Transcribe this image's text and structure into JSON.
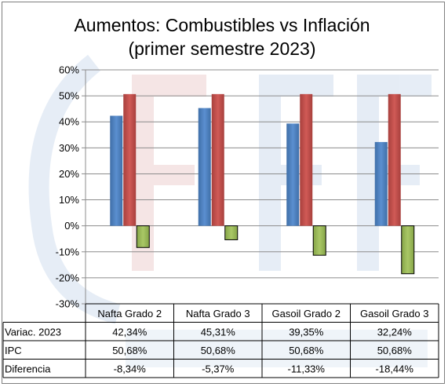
{
  "chart_data": {
    "type": "bar",
    "title": "Aumentos: Combustibles vs Inflación",
    "subtitle": "(primer semestre 2023)",
    "categories": [
      "Nafta Grado 2",
      "Nafta Grado 3",
      "Gasoil Grado 2",
      "Gasoil Grado 3"
    ],
    "series": [
      {
        "name": "Variac. 2023",
        "values": [
          42.34,
          45.31,
          39.35,
          32.24
        ],
        "labels": [
          "42,34%",
          "45,31%",
          "39,35%",
          "32,24%"
        ],
        "color": "#4f81bd"
      },
      {
        "name": "IPC",
        "values": [
          50.68,
          50.68,
          50.68,
          50.68
        ],
        "labels": [
          "50,68%",
          "50,68%",
          "50,68%",
          "50,68%"
        ],
        "color": "#c0504d"
      },
      {
        "name": "Diferencia",
        "values": [
          -8.34,
          -5.37,
          -11.33,
          -18.44
        ],
        "labels": [
          "-8,34%",
          "-5,37%",
          "-11,33%",
          "-18,44%"
        ],
        "color": "#9bbb59"
      }
    ],
    "ylim": [
      -30,
      60
    ],
    "yticks": [
      60,
      50,
      40,
      30,
      20,
      10,
      0,
      -10,
      -20,
      -30
    ],
    "ytick_labels": [
      "60%",
      "50%",
      "40%",
      "30%",
      "20%",
      "10%",
      "0%",
      "-10%",
      "-20%",
      "-30%"
    ],
    "grid": true,
    "legend": "data-table-below"
  }
}
